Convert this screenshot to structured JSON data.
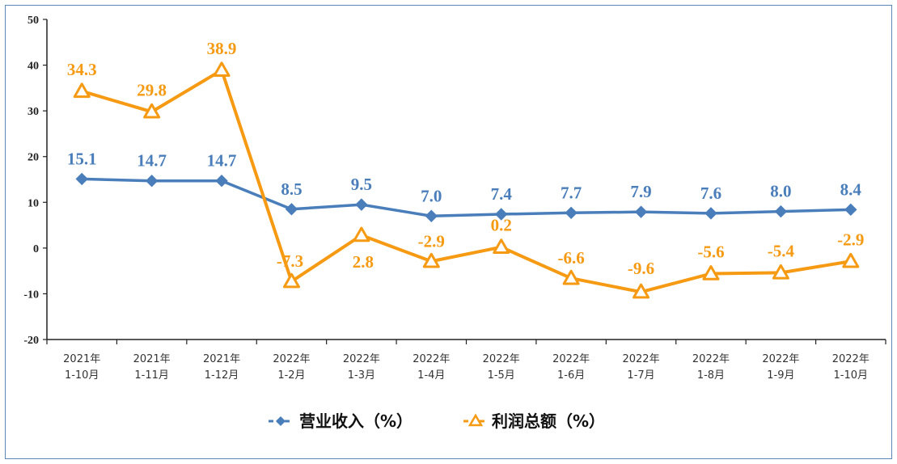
{
  "chart_data": {
    "type": "line",
    "categories": [
      [
        "2021年",
        "1-10月"
      ],
      [
        "2021年",
        "1-11月"
      ],
      [
        "2021年",
        "1-12月"
      ],
      [
        "2022年",
        "1-2月"
      ],
      [
        "2022年",
        "1-3月"
      ],
      [
        "2022年",
        "1-4月"
      ],
      [
        "2022年",
        "1-5月"
      ],
      [
        "2022年",
        "1-6月"
      ],
      [
        "2022年",
        "1-7月"
      ],
      [
        "2022年",
        "1-8月"
      ],
      [
        "2022年",
        "1-9月"
      ],
      [
        "2022年",
        "1-10月"
      ]
    ],
    "series": [
      {
        "name": "营业收入（%）",
        "color": "#4a7ebb",
        "marker": "diamond",
        "values": [
          15.1,
          14.7,
          14.7,
          8.5,
          9.5,
          7.0,
          7.4,
          7.7,
          7.9,
          7.6,
          8.0,
          8.4
        ],
        "labels": [
          "15.1",
          "14.7",
          "14.7",
          "8.5",
          "9.5",
          "7.0",
          "7.4",
          "7.7",
          "7.9",
          "7.6",
          "8.0",
          "8.4"
        ]
      },
      {
        "name": "利润总额（%）",
        "color": "#f59a12",
        "marker": "triangle",
        "values": [
          34.3,
          29.8,
          38.9,
          -7.3,
          2.8,
          -2.9,
          0.2,
          -6.6,
          -9.6,
          -5.6,
          -5.4,
          -2.9
        ],
        "labels": [
          "34.3",
          "29.8",
          "38.9",
          "-7.3",
          "2.8",
          "-2.9",
          "0.2",
          "-6.6",
          "-9.6",
          "-5.6",
          "-5.4",
          "-2.9"
        ]
      }
    ],
    "ylim": [
      -20,
      50
    ],
    "yticks": [
      "50",
      "40",
      "30",
      "20",
      "10",
      "0",
      "-10",
      "-20"
    ],
    "ytick_values": [
      50,
      40,
      30,
      20,
      10,
      0,
      -10,
      -20
    ],
    "grid": false,
    "legend_position": "bottom"
  }
}
